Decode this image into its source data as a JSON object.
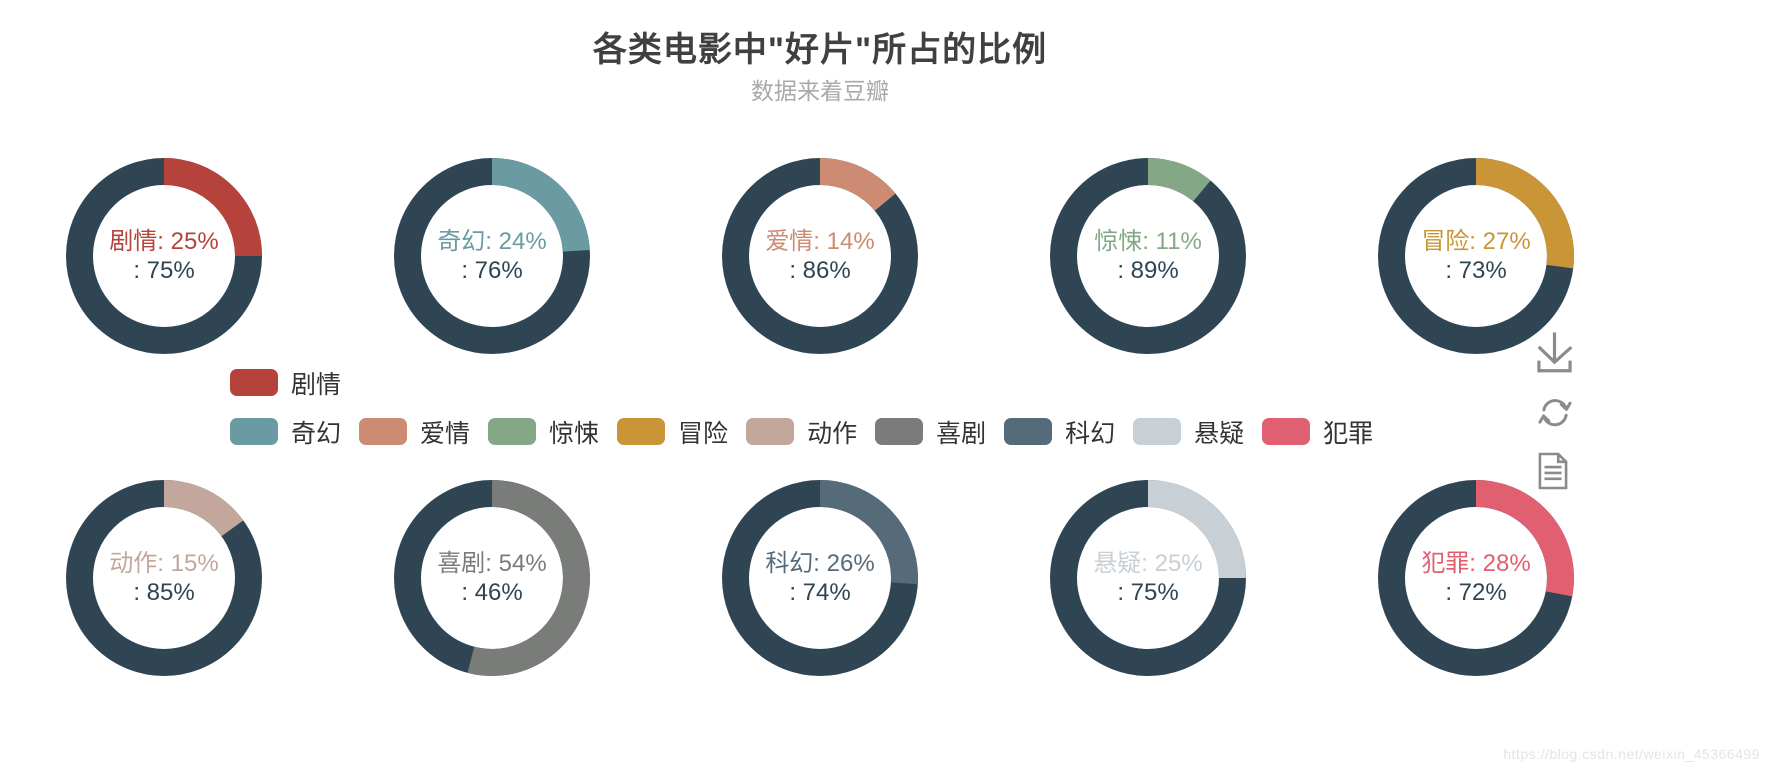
{
  "header": {
    "title": "各类电影中\"好片\"所占的比例",
    "subtitle": "数据来着豆瓣"
  },
  "chart_data": {
    "type": "pie",
    "subtype": "donut-grid",
    "title": "各类电影中\"好片\"所占的比例",
    "subtitle": "数据来着豆瓣",
    "layout": "2 rows x 5 donuts, legend in middle, toolbox at right",
    "remainder_color": "#2f4554",
    "series": [
      {
        "name": "剧情",
        "good_pct": 25,
        "rest_pct": 75,
        "color": "#b5423b"
      },
      {
        "name": "奇幻",
        "good_pct": 24,
        "rest_pct": 76,
        "color": "#6a9aa2"
      },
      {
        "name": "爱情",
        "good_pct": 14,
        "rest_pct": 86,
        "color": "#cc8b72"
      },
      {
        "name": "惊悚",
        "good_pct": 11,
        "rest_pct": 89,
        "color": "#84a886"
      },
      {
        "name": "冒险",
        "good_pct": 27,
        "rest_pct": 73,
        "color": "#c99536"
      },
      {
        "name": "动作",
        "good_pct": 15,
        "rest_pct": 85,
        "color": "#c3a69c"
      },
      {
        "name": "喜剧",
        "good_pct": 54,
        "rest_pct": 46,
        "color": "#7a7c7a"
      },
      {
        "name": "科幻",
        "good_pct": 26,
        "rest_pct": 74,
        "color": "#566b7a"
      },
      {
        "name": "悬疑",
        "good_pct": 25,
        "rest_pct": 75,
        "color": "#c8d0d6"
      },
      {
        "name": "犯罪",
        "good_pct": 28,
        "rest_pct": 72,
        "color": "#e06072"
      }
    ],
    "center_label_format": "{name}: {good_pct}%  /  : {rest_pct}%",
    "legend_rows": [
      [
        "剧情"
      ],
      [
        "奇幻",
        "爱情",
        "惊悚",
        "冒险",
        "动作",
        "喜剧",
        "科幻",
        "悬疑",
        "犯罪"
      ]
    ]
  },
  "toolbox": {
    "icons": [
      "save-as-image",
      "restore",
      "data-view"
    ]
  },
  "watermark": "https://blog.csdn.net/weixin_45366499"
}
